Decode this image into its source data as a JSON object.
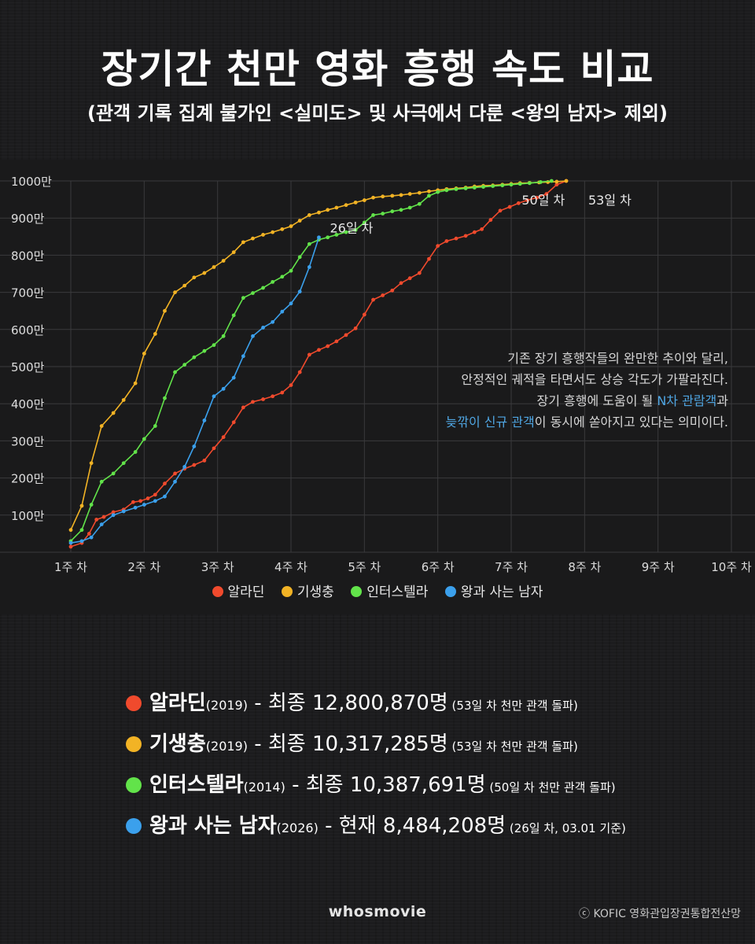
{
  "header": {
    "title": "장기간 천만 영화 흥행 속도 비교",
    "subtitle": "(관객 기록 집계 불가인 <실미도> 및 사극에서 다룬 <왕의 남자> 제외)"
  },
  "chart_data": {
    "type": "line",
    "x_ticks": [
      "1주 차",
      "2주 차",
      "3주 차",
      "4주 차",
      "5주 차",
      "6주 차",
      "7주 차",
      "8주 차",
      "9주 차",
      "10주 차"
    ],
    "y_ticks": [
      "100만",
      "200만",
      "300만",
      "400만",
      "500만",
      "600만",
      "700만",
      "800만",
      "900만",
      "1000만"
    ],
    "xlabel": "",
    "ylabel": "",
    "x_unit": "주 차 (week)",
    "y_unit": "만 명",
    "xlim": [
      1,
      10
    ],
    "ylim": [
      0,
      1000
    ],
    "grid": true,
    "legend_position": "bottom",
    "series": [
      {
        "name": "알라딘",
        "color": "#f04a2d",
        "points": [
          [
            1,
            15
          ],
          [
            1.15,
            25
          ],
          [
            1.25,
            50
          ],
          [
            1.35,
            88
          ],
          [
            1.45,
            95
          ],
          [
            1.58,
            108
          ],
          [
            1.72,
            115
          ],
          [
            1.85,
            135
          ],
          [
            1.95,
            138
          ],
          [
            2.05,
            145
          ],
          [
            2.15,
            155
          ],
          [
            2.28,
            185
          ],
          [
            2.42,
            212
          ],
          [
            2.55,
            225
          ],
          [
            2.68,
            235
          ],
          [
            2.82,
            247
          ],
          [
            2.95,
            280
          ],
          [
            3.08,
            310
          ],
          [
            3.22,
            350
          ],
          [
            3.35,
            390
          ],
          [
            3.48,
            405
          ],
          [
            3.62,
            412
          ],
          [
            3.75,
            420
          ],
          [
            3.88,
            430
          ],
          [
            4.0,
            450
          ],
          [
            4.12,
            485
          ],
          [
            4.25,
            532
          ],
          [
            4.38,
            545
          ],
          [
            4.5,
            555
          ],
          [
            4.62,
            568
          ],
          [
            4.75,
            585
          ],
          [
            4.88,
            603
          ],
          [
            5.0,
            640
          ],
          [
            5.12,
            680
          ],
          [
            5.25,
            692
          ],
          [
            5.38,
            705
          ],
          [
            5.5,
            725
          ],
          [
            5.62,
            738
          ],
          [
            5.75,
            752
          ],
          [
            5.88,
            790
          ],
          [
            6.0,
            825
          ],
          [
            6.12,
            838
          ],
          [
            6.25,
            845
          ],
          [
            6.38,
            852
          ],
          [
            6.5,
            862
          ],
          [
            6.6,
            870
          ],
          [
            6.72,
            895
          ],
          [
            6.85,
            920
          ],
          [
            6.98,
            930
          ],
          [
            7.1,
            940
          ],
          [
            7.22,
            948
          ],
          [
            7.35,
            955
          ],
          [
            7.48,
            965
          ],
          [
            7.62,
            990
          ],
          [
            7.75,
            1000
          ]
        ]
      },
      {
        "name": "기생충",
        "color": "#f2b325",
        "points": [
          [
            1,
            60
          ],
          [
            1.15,
            125
          ],
          [
            1.28,
            240
          ],
          [
            1.42,
            340
          ],
          [
            1.58,
            375
          ],
          [
            1.72,
            410
          ],
          [
            1.88,
            455
          ],
          [
            2.0,
            535
          ],
          [
            2.15,
            588
          ],
          [
            2.28,
            650
          ],
          [
            2.42,
            700
          ],
          [
            2.55,
            718
          ],
          [
            2.68,
            740
          ],
          [
            2.82,
            752
          ],
          [
            2.95,
            768
          ],
          [
            3.08,
            785
          ],
          [
            3.22,
            808
          ],
          [
            3.35,
            835
          ],
          [
            3.48,
            845
          ],
          [
            3.62,
            855
          ],
          [
            3.75,
            862
          ],
          [
            3.88,
            870
          ],
          [
            4.0,
            878
          ],
          [
            4.12,
            893
          ],
          [
            4.25,
            908
          ],
          [
            4.38,
            915
          ],
          [
            4.5,
            922
          ],
          [
            4.62,
            928
          ],
          [
            4.75,
            935
          ],
          [
            4.88,
            942
          ],
          [
            5.0,
            948
          ],
          [
            5.12,
            955
          ],
          [
            5.25,
            958
          ],
          [
            5.38,
            960
          ],
          [
            5.5,
            962
          ],
          [
            5.62,
            965
          ],
          [
            5.75,
            968
          ],
          [
            5.88,
            972
          ],
          [
            6.0,
            975
          ],
          [
            6.12,
            978
          ],
          [
            6.25,
            980
          ],
          [
            6.38,
            982
          ],
          [
            6.5,
            985
          ],
          [
            6.62,
            987
          ],
          [
            6.75,
            988
          ],
          [
            6.88,
            990
          ],
          [
            7.0,
            992
          ],
          [
            7.12,
            994
          ],
          [
            7.25,
            995
          ],
          [
            7.38,
            996
          ],
          [
            7.5,
            997
          ],
          [
            7.62,
            998
          ],
          [
            7.75,
            1000
          ]
        ]
      },
      {
        "name": "인터스텔라",
        "color": "#62e34a",
        "points": [
          [
            1,
            30
          ],
          [
            1.15,
            60
          ],
          [
            1.28,
            128
          ],
          [
            1.42,
            190
          ],
          [
            1.58,
            212
          ],
          [
            1.72,
            240
          ],
          [
            1.88,
            270
          ],
          [
            2.0,
            305
          ],
          [
            2.15,
            340
          ],
          [
            2.28,
            415
          ],
          [
            2.42,
            485
          ],
          [
            2.55,
            505
          ],
          [
            2.68,
            525
          ],
          [
            2.82,
            542
          ],
          [
            2.95,
            558
          ],
          [
            3.08,
            582
          ],
          [
            3.22,
            638
          ],
          [
            3.35,
            685
          ],
          [
            3.48,
            698
          ],
          [
            3.62,
            712
          ],
          [
            3.75,
            728
          ],
          [
            3.88,
            742
          ],
          [
            4.0,
            758
          ],
          [
            4.12,
            795
          ],
          [
            4.25,
            830
          ],
          [
            4.38,
            842
          ],
          [
            4.5,
            848
          ],
          [
            4.62,
            855
          ],
          [
            4.75,
            862
          ],
          [
            4.88,
            868
          ],
          [
            5.0,
            888
          ],
          [
            5.12,
            908
          ],
          [
            5.25,
            912
          ],
          [
            5.38,
            918
          ],
          [
            5.5,
            922
          ],
          [
            5.62,
            928
          ],
          [
            5.75,
            938
          ],
          [
            5.88,
            960
          ],
          [
            6.0,
            970
          ],
          [
            6.12,
            975
          ],
          [
            6.25,
            978
          ],
          [
            6.38,
            980
          ],
          [
            6.5,
            982
          ],
          [
            6.62,
            984
          ],
          [
            6.75,
            986
          ],
          [
            6.88,
            988
          ],
          [
            7.0,
            990
          ],
          [
            7.12,
            992
          ],
          [
            7.25,
            994
          ],
          [
            7.4,
            997
          ],
          [
            7.55,
            1000
          ]
        ]
      },
      {
        "name": "왕과 사는 남자",
        "color": "#3ba0ec",
        "points": [
          [
            1,
            25
          ],
          [
            1.15,
            30
          ],
          [
            1.28,
            40
          ],
          [
            1.42,
            75
          ],
          [
            1.58,
            100
          ],
          [
            1.72,
            110
          ],
          [
            1.88,
            120
          ],
          [
            2.0,
            128
          ],
          [
            2.15,
            138
          ],
          [
            2.28,
            150
          ],
          [
            2.42,
            190
          ],
          [
            2.55,
            230
          ],
          [
            2.68,
            285
          ],
          [
            2.82,
            355
          ],
          [
            2.95,
            420
          ],
          [
            3.08,
            440
          ],
          [
            3.22,
            470
          ],
          [
            3.35,
            528
          ],
          [
            3.48,
            582
          ],
          [
            3.62,
            605
          ],
          [
            3.75,
            620
          ],
          [
            3.88,
            648
          ],
          [
            4.0,
            670
          ],
          [
            4.12,
            702
          ],
          [
            4.25,
            768
          ],
          [
            4.38,
            848
          ]
        ]
      }
    ],
    "annotations": [
      {
        "text": "26일 차",
        "x": 4.38,
        "y": 848
      },
      {
        "text": "50일 차",
        "x": 7.55,
        "y": 1000
      },
      {
        "text": "53일 차",
        "x": 7.75,
        "y": 1000
      }
    ]
  },
  "note": {
    "line1": "기존 장기 흥행작들의 완만한 추이와 달리,",
    "line2": "안정적인 궤적을 타면서도 상승 각도가 가팔라진다.",
    "line3_pre": "장기 흥행에 도움이 될 ",
    "line3_hl": "N차 관람객",
    "line3_post": "과",
    "line4_hl": "늦깎이 신규 관객",
    "line4_post": "이 동시에 쏟아지고 있다는 의미이다."
  },
  "summary": [
    {
      "name": "알라딘",
      "year": "(2019)",
      "final": " - 최종 12,800,870명",
      "note": " (53일 차 천만 관객 돌파)",
      "color": "#f04a2d"
    },
    {
      "name": "기생충",
      "year": "(2019)",
      "final": " - 최종 10,317,285명",
      "note": " (53일 차 천만 관객 돌파)",
      "color": "#f2b325"
    },
    {
      "name": "인터스텔라",
      "year": "(2014)",
      "final": " - 최종 10,387,691명",
      "note": " (50일 차 천만 관객 돌파)",
      "color": "#62e34a"
    },
    {
      "name": "왕과 사는 남자",
      "year": "(2026)",
      "final": " - 현재 8,484,208명",
      "note": " (26일 차, 03.01 기준)",
      "color": "#3ba0ec"
    }
  ],
  "footer": {
    "brand": "whosmovie",
    "source": "ⓒ KOFIC 영화관입장권통합전산망"
  }
}
